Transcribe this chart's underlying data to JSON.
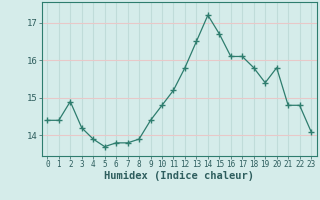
{
  "x": [
    0,
    1,
    2,
    3,
    4,
    5,
    6,
    7,
    8,
    9,
    10,
    11,
    12,
    13,
    14,
    15,
    16,
    17,
    18,
    19,
    20,
    21,
    22,
    23
  ],
  "y": [
    14.4,
    14.4,
    14.9,
    14.2,
    13.9,
    13.7,
    13.8,
    13.8,
    13.9,
    14.4,
    14.8,
    15.2,
    15.8,
    16.5,
    17.2,
    16.7,
    16.1,
    16.1,
    15.8,
    15.4,
    15.8,
    14.8,
    14.8,
    14.1
  ],
  "line_color": "#2e7d6e",
  "marker": "+",
  "marker_size": 4,
  "bg_color": "#d5ecea",
  "vgrid_color": "#c0dcd9",
  "hgrid_color": "#e8c8c8",
  "xlabel": "Humidex (Indice chaleur)",
  "xlabel_fontsize": 7.5,
  "ylabel_ticks": [
    14,
    15,
    16,
    17
  ],
  "xtick_labels": [
    "0",
    "1",
    "2",
    "3",
    "4",
    "5",
    "6",
    "7",
    "8",
    "9",
    "10",
    "11",
    "12",
    "13",
    "14",
    "15",
    "16",
    "17",
    "18",
    "19",
    "20",
    "21",
    "22",
    "23"
  ],
  "ylim": [
    13.45,
    17.55
  ],
  "xlim": [
    -0.5,
    23.5
  ],
  "ytick_fontsize": 6.5,
  "xtick_fontsize": 5.5
}
